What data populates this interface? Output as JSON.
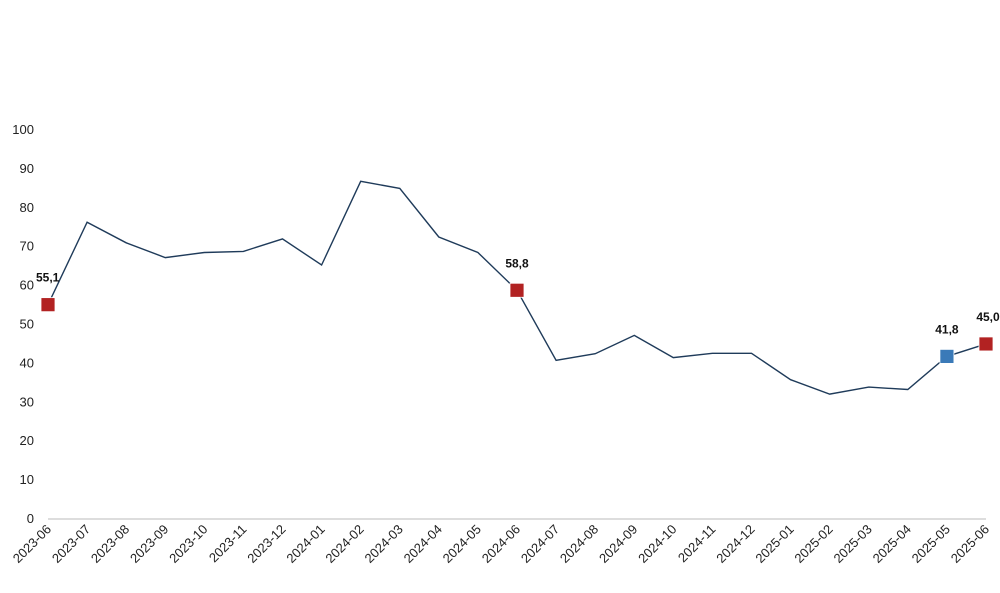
{
  "chart_data": {
    "type": "line",
    "title": "",
    "xlabel": "",
    "ylabel": "",
    "ylim": [
      0,
      100
    ],
    "yticks": [
      "0",
      "10",
      "20",
      "30",
      "40",
      "50",
      "60",
      "70",
      "80",
      "90",
      "100"
    ],
    "grid": false,
    "legend": "none",
    "categories": [
      "2023-06",
      "2023-07",
      "2023-08",
      "2023-09",
      "2023-10",
      "2023-11",
      "2023-12",
      "2024-01",
      "2024-02",
      "2024-03",
      "2024-04",
      "2024-05",
      "2024-06",
      "2024-07",
      "2024-08",
      "2024-09",
      "2024-10",
      "2024-11",
      "2024-12",
      "2025-01",
      "2025-02",
      "2025-03",
      "2025-04",
      "2025-05",
      "2025-06"
    ],
    "series": [
      {
        "values": [
          55.1,
          76.3,
          71.0,
          67.2,
          68.5,
          68.8,
          72.0,
          65.3,
          86.8,
          85.0,
          72.5,
          68.5,
          58.8,
          40.8,
          42.5,
          47.2,
          41.5,
          42.6,
          42.6,
          35.8,
          32.1,
          33.9,
          33.3,
          41.8,
          45.0
        ],
        "color": "#1f3b5a"
      }
    ],
    "highlights": [
      {
        "index": 0,
        "label": "55,1",
        "color": "#b22222"
      },
      {
        "index": 12,
        "label": "58,8",
        "color": "#b22222"
      },
      {
        "index": 23,
        "label": "41,8",
        "color": "#3a7ab8"
      },
      {
        "index": 24,
        "label": "45,0",
        "color": "#b22222"
      }
    ]
  }
}
